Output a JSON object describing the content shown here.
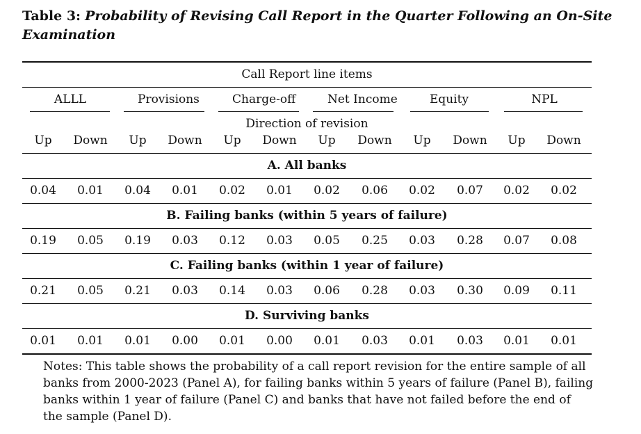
{
  "caption": {
    "label": "Table 3:",
    "title": "Probability of Revising Call Report in the Quarter Following an On-Site Examination"
  },
  "header": {
    "group_title": "Call Report line items",
    "line_items": [
      "ALLL",
      "Provisions",
      "Charge-off",
      "Net Income",
      "Equity",
      "NPL"
    ],
    "direction_title": "Direction of revision",
    "directions": [
      "Up",
      "Down",
      "Up",
      "Down",
      "Up",
      "Down",
      "Up",
      "Down",
      "Up",
      "Down",
      "Up",
      "Down"
    ]
  },
  "panels": [
    {
      "title": "A. All banks",
      "values": [
        "0.04",
        "0.01",
        "0.04",
        "0.01",
        "0.02",
        "0.01",
        "0.02",
        "0.06",
        "0.02",
        "0.07",
        "0.02",
        "0.02"
      ]
    },
    {
      "title": "B. Failing banks (within 5 years of failure)",
      "values": [
        "0.19",
        "0.05",
        "0.19",
        "0.03",
        "0.12",
        "0.03",
        "0.05",
        "0.25",
        "0.03",
        "0.28",
        "0.07",
        "0.08"
      ]
    },
    {
      "title": "C. Failing banks (within 1 year of failure)",
      "values": [
        "0.21",
        "0.05",
        "0.21",
        "0.03",
        "0.14",
        "0.03",
        "0.06",
        "0.28",
        "0.03",
        "0.30",
        "0.09",
        "0.11"
      ]
    },
    {
      "title": "D. Surviving banks",
      "values": [
        "0.01",
        "0.01",
        "0.01",
        "0.00",
        "0.01",
        "0.00",
        "0.01",
        "0.03",
        "0.01",
        "0.03",
        "0.01",
        "0.01"
      ]
    }
  ],
  "notes": "Notes: This table shows the probability of a call report revision for the entire sample of all banks from 2000-2023 (Panel A), for failing banks within 5 years of failure (Panel B), failing banks within 1 year of failure (Panel C) and banks that have not failed before the end of the sample (Panel D)."
}
